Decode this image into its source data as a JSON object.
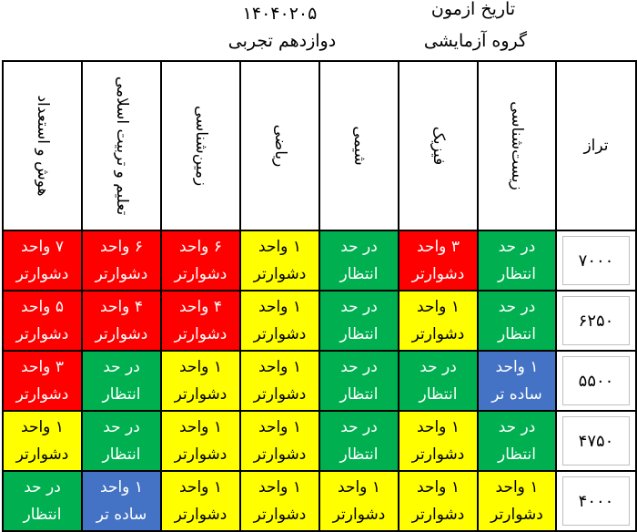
{
  "header": {
    "date_label": "تاریخ ازمون",
    "date": "۱۴۰۴۰۲۰۵",
    "group_label": "گروه آزمایشی",
    "group": "دوازدهم تجربی"
  },
  "columns": {
    "taraz": "تراز",
    "subjects": [
      "زیست‌شناسی",
      "فیزیک",
      "شیمی",
      "ریاضی",
      "زمین‌شناسی",
      "تعلیم و تربیت اسلامی",
      "هوش و استعداد"
    ]
  },
  "colors": {
    "red": "#ff0000",
    "yellow": "#ffff00",
    "green": "#00b050",
    "blue": "#4472c4"
  },
  "rows": [
    {
      "taraz": "۷۰۰۰",
      "cells": [
        {
          "color": "green",
          "line1": "در حد",
          "line2": "انتظار"
        },
        {
          "color": "red",
          "line1": "۳ واحد",
          "line2": "دشوارتر"
        },
        {
          "color": "green",
          "line1": "در حد",
          "line2": "انتظار"
        },
        {
          "color": "yellow",
          "line1": "۱ واحد",
          "line2": "دشوارتر"
        },
        {
          "color": "red",
          "line1": "۶ واحد",
          "line2": "دشوارتر"
        },
        {
          "color": "red",
          "line1": "۶ واحد",
          "line2": "دشوارتر"
        },
        {
          "color": "red",
          "line1": "۷ واحد",
          "line2": "دشوارتر"
        }
      ]
    },
    {
      "taraz": "۶۲۵۰",
      "cells": [
        {
          "color": "green",
          "line1": "در حد",
          "line2": "انتظار"
        },
        {
          "color": "yellow",
          "line1": "۱ واحد",
          "line2": "دشوارتر"
        },
        {
          "color": "green",
          "line1": "در حد",
          "line2": "انتظار"
        },
        {
          "color": "yellow",
          "line1": "۱ واحد",
          "line2": "دشوارتر"
        },
        {
          "color": "red",
          "line1": "۴ واحد",
          "line2": "دشوارتر"
        },
        {
          "color": "red",
          "line1": "۴ واحد",
          "line2": "دشوارتر"
        },
        {
          "color": "red",
          "line1": "۵ واحد",
          "line2": "دشوارتر"
        }
      ]
    },
    {
      "taraz": "۵۵۰۰",
      "cells": [
        {
          "color": "blue",
          "line1": "۱ واحد",
          "line2": "ساده تر"
        },
        {
          "color": "green",
          "line1": "در حد",
          "line2": "انتظار"
        },
        {
          "color": "green",
          "line1": "در حد",
          "line2": "انتظار"
        },
        {
          "color": "yellow",
          "line1": "۱ واحد",
          "line2": "دشوارتر"
        },
        {
          "color": "yellow",
          "line1": "۱ واحد",
          "line2": "دشوارتر"
        },
        {
          "color": "green",
          "line1": "در حد",
          "line2": "انتظار"
        },
        {
          "color": "red",
          "line1": "۳ واحد",
          "line2": "دشوارتر"
        }
      ]
    },
    {
      "taraz": "۴۷۵۰",
      "cells": [
        {
          "color": "green",
          "line1": "در حد",
          "line2": "انتظار"
        },
        {
          "color": "yellow",
          "line1": "۱ واحد",
          "line2": "دشوارتر"
        },
        {
          "color": "green",
          "line1": "در حد",
          "line2": "انتظار"
        },
        {
          "color": "yellow",
          "line1": "۱ واحد",
          "line2": "دشوارتر"
        },
        {
          "color": "yellow",
          "line1": "۱ واحد",
          "line2": "دشوارتر"
        },
        {
          "color": "green",
          "line1": "در حد",
          "line2": "انتظار"
        },
        {
          "color": "yellow",
          "line1": "۱ واحد",
          "line2": "دشوارتر"
        }
      ]
    },
    {
      "taraz": "۴۰۰۰",
      "cells": [
        {
          "color": "yellow",
          "line1": "۱ واحد",
          "line2": "دشوارتر"
        },
        {
          "color": "yellow",
          "line1": "۱ واحد",
          "line2": "دشوارتر"
        },
        {
          "color": "yellow",
          "line1": "۱ واحد",
          "line2": "دشوارتر"
        },
        {
          "color": "yellow",
          "line1": "۱ واحد",
          "line2": "دشوارتر"
        },
        {
          "color": "yellow",
          "line1": "۱ واحد",
          "line2": "دشوارتر"
        },
        {
          "color": "blue",
          "line1": "۱ واحد",
          "line2": "ساده تر"
        },
        {
          "color": "green",
          "line1": "در حد",
          "line2": "انتظار"
        }
      ]
    }
  ]
}
